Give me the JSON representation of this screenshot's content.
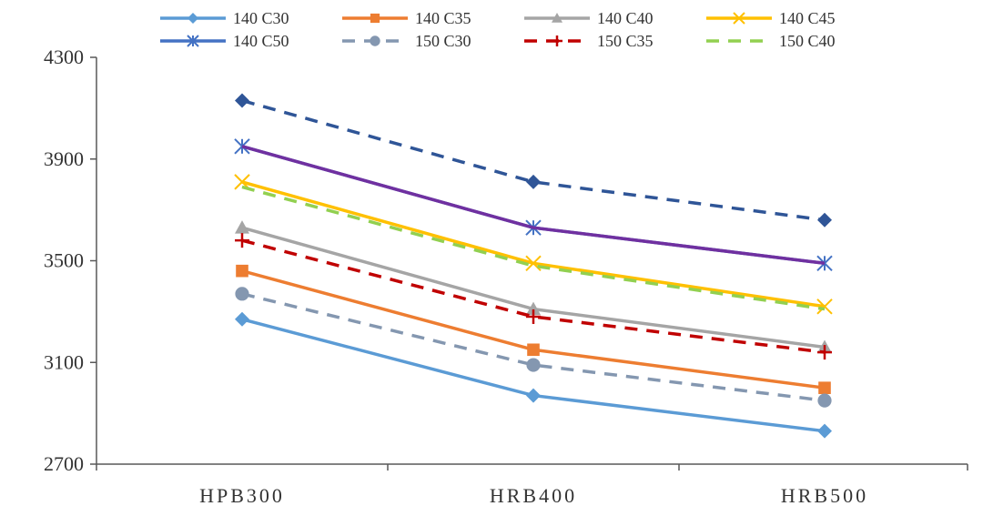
{
  "chart_data": {
    "type": "line",
    "title": "",
    "xlabel": "",
    "ylabel": "",
    "categories": [
      "HPB300",
      "HRB400",
      "HRB500"
    ],
    "ylim": [
      2700,
      4300
    ],
    "yticks": [
      2700,
      3100,
      3500,
      3900,
      4300
    ],
    "grid": false,
    "legend_position": "top",
    "series": [
      {
        "name": "140 C30",
        "values": [
          3270,
          2970,
          2830
        ],
        "color": "#5B9BD5",
        "dash": "solid",
        "marker": "diamond"
      },
      {
        "name": "140 C35",
        "values": [
          3460,
          3150,
          3000
        ],
        "color": "#ED7D31",
        "dash": "solid",
        "marker": "square"
      },
      {
        "name": "140 C40",
        "values": [
          3630,
          3310,
          3160
        ],
        "color": "#A5A5A5",
        "dash": "solid",
        "marker": "triangle"
      },
      {
        "name": "140 C45",
        "values": [
          3810,
          3490,
          3320
        ],
        "color": "#FFC000",
        "dash": "solid",
        "marker": "x"
      },
      {
        "name": "140 C50",
        "values": [
          3950,
          3630,
          3490
        ],
        "color": "#4472C4",
        "dash": "solid",
        "marker": "star"
      },
      {
        "name": "150 C30",
        "values": [
          3370,
          3090,
          2950
        ],
        "color": "#8497B0",
        "dash": "dash",
        "marker": "circle"
      },
      {
        "name": "150 C35",
        "values": [
          3580,
          3280,
          3140
        ],
        "color": "#C00000",
        "dash": "dash",
        "marker": "plus"
      },
      {
        "name": "150 C40",
        "values": [
          3790,
          3480,
          3310
        ],
        "color": "#92D050",
        "dash": "dash",
        "marker": "none"
      },
      {
        "name": "",
        "values": [
          4130,
          3810,
          3660
        ],
        "color": "#2F5597",
        "dash": "dash",
        "marker": "diamond",
        "legend": false
      },
      {
        "name": "",
        "values": [
          3950,
          3630,
          3490
        ],
        "color": "#7030A0",
        "dash": "solid",
        "marker": "none",
        "legend": false
      }
    ]
  }
}
